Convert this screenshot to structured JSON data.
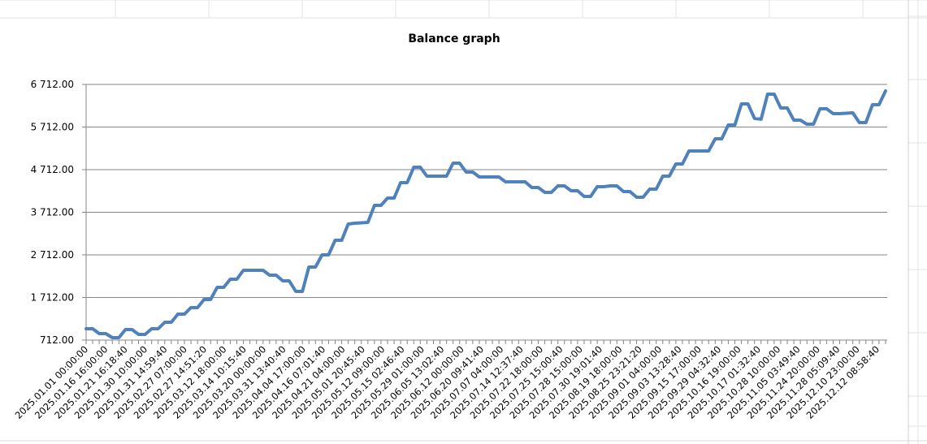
{
  "chart_data": {
    "type": "line",
    "title": "Balance graph",
    "xlabel": "",
    "ylabel": "",
    "ylim": [
      712,
      6712
    ],
    "yticks": [
      "712.00",
      "1 712.00",
      "2 712.00",
      "3 712.00",
      "4 712.00",
      "5 712.00",
      "6 712.00"
    ],
    "ytick_values": [
      712,
      1712,
      2712,
      3712,
      4712,
      5712,
      6712
    ],
    "grid": "horizontal",
    "legend": "none",
    "line_color": "#4f81bd",
    "x_tick_labels": [
      "2025.01.01 00:00:00",
      "2025.01.16 16:00:00",
      "2025.01.21 16:18:40",
      "2025.01.30 10:00:00",
      "2025.01.31 14:59:40",
      "2025.02.27 07:00:00",
      "2025.02.27 14:51:20",
      "2025.03.12 18:00:00",
      "2025.03.14 10:15:40",
      "2025.03.20 00:00:00",
      "2025.03.31 13:40:40",
      "2025.04.04 17:00:00",
      "2025.04.16 07:01:40",
      "2025.04.21 04:00:00",
      "2025.05.01 20:45:40",
      "2025.05.12 09:00:00",
      "2025.05.15 02:46:40",
      "2025.05.29 01:00:00",
      "2025.06.05 13:02:40",
      "2025.06.12 00:00:00",
      "2025.06.20 09:41:40",
      "2025.07.07 04:00:00",
      "2025.07.14 12:37:40",
      "2025.07.22 18:00:00",
      "2025.07.25 15:00:40",
      "2025.07.28 15:00:00",
      "2025.07.30 19:01:40",
      "2025.08.19 18:00:00",
      "2025.08.25 23:21:20",
      "2025.09.01 04:00:00",
      "2025.09.03 13:28:40",
      "2025.09.15 17:00:00",
      "2025.09.29 04:32:40",
      "2025.10.16 19:00:00",
      "2025.10.17 01:32:40",
      "2025.10.28 10:00:00",
      "2025.11.05 03:49:40",
      "2025.11.24 20:00:00",
      "2025.11.28 05:09:40",
      "2025.12.10 23:00:00",
      "2025.12.12 08:58:40"
    ],
    "series": [
      {
        "values": [
          979,
          979,
          864,
          864,
          769,
          769,
          960,
          960,
          845,
          845,
          979,
          979,
          1131,
          1131,
          1322,
          1322,
          1474,
          1474,
          1664,
          1664,
          1950,
          1950,
          2141,
          2141,
          2350,
          2350,
          2350,
          2350,
          2236,
          2236,
          2103,
          2103,
          1855,
          1855,
          2427,
          2427,
          2712,
          2712,
          3055,
          3055,
          3436,
          3455,
          3465,
          3474,
          3874,
          3874,
          4046,
          4046,
          4408,
          4408,
          4770,
          4770,
          4560,
          4560,
          4560,
          4560,
          4865,
          4865,
          4655,
          4655,
          4541,
          4541,
          4541,
          4541,
          4427,
          4427,
          4427,
          4427,
          4293,
          4293,
          4179,
          4179,
          4331,
          4331,
          4217,
          4217,
          4084,
          4084,
          4312,
          4312,
          4331,
          4331,
          4198,
          4198,
          4065,
          4065,
          4255,
          4255,
          4560,
          4560,
          4846,
          4846,
          5151,
          5151,
          5151,
          5151,
          5436,
          5436,
          5760,
          5760,
          6255,
          6255,
          5913,
          5894,
          6484,
          6484,
          6160,
          6160,
          5874,
          5874,
          5779,
          5779,
          6141,
          6141,
          6027,
          6027,
          6036,
          6046,
          5817,
          5817,
          6236,
          6236,
          6560
        ]
      }
    ]
  }
}
